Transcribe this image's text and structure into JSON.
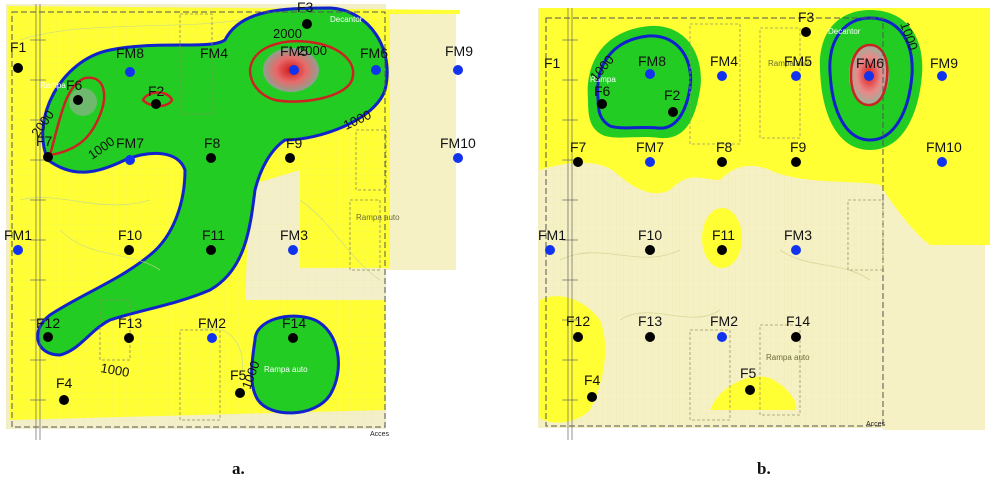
{
  "panels": [
    {
      "id": "a",
      "caption": "a.",
      "acces_label": "Acces",
      "contour_labels": [
        "2000",
        "2000",
        "2000",
        "1000",
        "1000",
        "1000",
        "1000",
        "1000"
      ],
      "points": [
        {
          "name": "F1",
          "type": "black"
        },
        {
          "name": "FM8",
          "type": "blue"
        },
        {
          "name": "FM4",
          "type": "none"
        },
        {
          "name": "FM5",
          "type": "blue"
        },
        {
          "name": "FM6",
          "type": "blue"
        },
        {
          "name": "FM9",
          "type": "blue"
        },
        {
          "name": "F3",
          "type": "black"
        },
        {
          "name": "F6",
          "type": "black"
        },
        {
          "name": "F2",
          "type": "black"
        },
        {
          "name": "F7",
          "type": "black"
        },
        {
          "name": "FM7",
          "type": "blue"
        },
        {
          "name": "F8",
          "type": "black"
        },
        {
          "name": "F9",
          "type": "black"
        },
        {
          "name": "FM10",
          "type": "blue"
        },
        {
          "name": "FM1",
          "type": "blue"
        },
        {
          "name": "F10",
          "type": "black"
        },
        {
          "name": "F11",
          "type": "black"
        },
        {
          "name": "FM3",
          "type": "blue"
        },
        {
          "name": "F12",
          "type": "black"
        },
        {
          "name": "F13",
          "type": "black"
        },
        {
          "name": "FM2",
          "type": "blue"
        },
        {
          "name": "F14",
          "type": "black"
        },
        {
          "name": "F4",
          "type": "black"
        },
        {
          "name": "F5",
          "type": "black"
        }
      ],
      "features": [
        "Decantor",
        "Rampa auto",
        "Rampa auto",
        "Rampa"
      ]
    },
    {
      "id": "b",
      "caption": "b.",
      "acces_label": "Acces",
      "contour_labels": [
        "1000",
        "1000"
      ],
      "points": [
        {
          "name": "F3",
          "type": "black"
        },
        {
          "name": "F1",
          "type": "none"
        },
        {
          "name": "FM8",
          "type": "blue"
        },
        {
          "name": "FM4",
          "type": "blue"
        },
        {
          "name": "FM5",
          "type": "blue"
        },
        {
          "name": "FM6",
          "type": "blue"
        },
        {
          "name": "FM9",
          "type": "blue"
        },
        {
          "name": "F6",
          "type": "black"
        },
        {
          "name": "F2",
          "type": "black"
        },
        {
          "name": "F7",
          "type": "black"
        },
        {
          "name": "FM7",
          "type": "blue"
        },
        {
          "name": "F8",
          "type": "black"
        },
        {
          "name": "F9",
          "type": "black"
        },
        {
          "name": "FM10",
          "type": "blue"
        },
        {
          "name": "FM1",
          "type": "blue"
        },
        {
          "name": "F10",
          "type": "black"
        },
        {
          "name": "F11",
          "type": "black"
        },
        {
          "name": "FM3",
          "type": "blue"
        },
        {
          "name": "F12",
          "type": "black"
        },
        {
          "name": "F13",
          "type": "black"
        },
        {
          "name": "FM2",
          "type": "blue"
        },
        {
          "name": "F14",
          "type": "black"
        },
        {
          "name": "F4",
          "type": "black"
        },
        {
          "name": "F5",
          "type": "black"
        }
      ],
      "features": [
        "Decantor",
        "Rampa auto",
        "Rampa auto",
        "Rampa"
      ]
    }
  ],
  "colors": {
    "yellow": "#ffff33",
    "pale_yellow": "#f5f1c4",
    "green": "#22cc22",
    "contour_1000": "#1122cc",
    "contour_2000": "#cc2222",
    "well_black": "#000000",
    "well_blue": "#1133ee"
  }
}
